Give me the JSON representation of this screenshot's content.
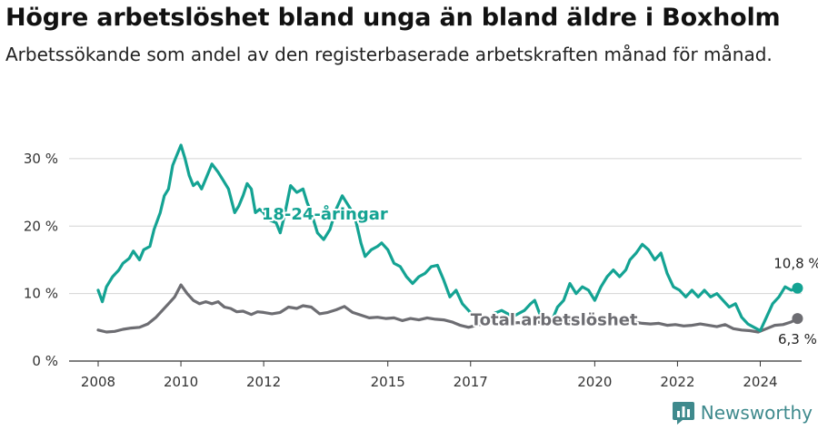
{
  "header": {
    "title": "Högre arbetslöshet bland unga än bland äldre i Boxholm",
    "subtitle": "Arbetssökande som andel av den registerbaserade arbetskraften månad för månad."
  },
  "brand": {
    "name": "Newsworthy",
    "icon": "newsworthy-logo-icon",
    "color": "#3f8a8d"
  },
  "chart_data": {
    "type": "line",
    "y_ticks": [
      0,
      10,
      20,
      30
    ],
    "y_tick_labels": [
      "0 %",
      "10 %",
      "20 %",
      "30 %"
    ],
    "x_ticks": [
      2008,
      2010,
      2012,
      2015,
      2017,
      2020,
      2022,
      2024
    ],
    "x_tick_labels": [
      "2008",
      "2010",
      "2012",
      "2015",
      "2017",
      "2020",
      "2022",
      "2024"
    ],
    "ylim": [
      0,
      32
    ],
    "xlim": [
      2008.0,
      2025.0
    ],
    "grid": true,
    "series": [
      {
        "name": "18-24-åringar",
        "color": "#14a393",
        "end_label": "10,8 %",
        "points": [
          [
            2008.0,
            10.5
          ],
          [
            2008.1,
            8.8
          ],
          [
            2008.2,
            11.0
          ],
          [
            2008.35,
            12.5
          ],
          [
            2008.5,
            13.5
          ],
          [
            2008.6,
            14.5
          ],
          [
            2008.75,
            15.2
          ],
          [
            2008.85,
            16.3
          ],
          [
            2009.0,
            15.0
          ],
          [
            2009.1,
            16.5
          ],
          [
            2009.25,
            17.0
          ],
          [
            2009.35,
            19.5
          ],
          [
            2009.5,
            22.0
          ],
          [
            2009.6,
            24.5
          ],
          [
            2009.7,
            25.5
          ],
          [
            2009.8,
            29.0
          ],
          [
            2009.9,
            30.5
          ],
          [
            2010.0,
            32.0
          ],
          [
            2010.1,
            30.0
          ],
          [
            2010.2,
            27.5
          ],
          [
            2010.3,
            26.0
          ],
          [
            2010.4,
            26.5
          ],
          [
            2010.5,
            25.5
          ],
          [
            2010.6,
            27.0
          ],
          [
            2010.75,
            29.2
          ],
          [
            2010.9,
            28.0
          ],
          [
            2011.0,
            27.0
          ],
          [
            2011.15,
            25.5
          ],
          [
            2011.3,
            22.0
          ],
          [
            2011.4,
            23.0
          ],
          [
            2011.5,
            24.5
          ],
          [
            2011.6,
            26.3
          ],
          [
            2011.7,
            25.5
          ],
          [
            2011.8,
            22.0
          ],
          [
            2011.9,
            22.5
          ],
          [
            2012.0,
            22.0
          ],
          [
            2012.1,
            21.0
          ],
          [
            2012.3,
            20.5
          ],
          [
            2012.4,
            19.0
          ],
          [
            2012.5,
            21.5
          ],
          [
            2012.65,
            26.0
          ],
          [
            2012.8,
            25.0
          ],
          [
            2012.95,
            25.5
          ],
          [
            2013.05,
            23.5
          ],
          [
            2013.15,
            22.0
          ],
          [
            2013.3,
            19.0
          ],
          [
            2013.45,
            18.0
          ],
          [
            2013.6,
            19.5
          ],
          [
            2013.75,
            22.5
          ],
          [
            2013.9,
            24.5
          ],
          [
            2014.05,
            23.0
          ],
          [
            2014.2,
            21.5
          ],
          [
            2014.35,
            17.5
          ],
          [
            2014.45,
            15.5
          ],
          [
            2014.6,
            16.5
          ],
          [
            2014.75,
            17.0
          ],
          [
            2014.85,
            17.5
          ],
          [
            2015.0,
            16.5
          ],
          [
            2015.15,
            14.5
          ],
          [
            2015.3,
            14.0
          ],
          [
            2015.45,
            12.5
          ],
          [
            2015.6,
            11.5
          ],
          [
            2015.75,
            12.5
          ],
          [
            2015.9,
            13.0
          ],
          [
            2016.05,
            14.0
          ],
          [
            2016.2,
            14.2
          ],
          [
            2016.35,
            12.0
          ],
          [
            2016.5,
            9.5
          ],
          [
            2016.65,
            10.5
          ],
          [
            2016.8,
            8.5
          ],
          [
            2016.95,
            7.5
          ],
          [
            2017.1,
            6.5
          ],
          [
            2017.25,
            5.5
          ],
          [
            2017.4,
            6.0
          ],
          [
            2017.55,
            7.0
          ],
          [
            2017.75,
            7.5
          ],
          [
            2017.9,
            7.0
          ],
          [
            2018.0,
            6.5
          ],
          [
            2018.15,
            7.0
          ],
          [
            2018.3,
            7.5
          ],
          [
            2018.45,
            8.5
          ],
          [
            2018.55,
            9.0
          ],
          [
            2018.7,
            6.5
          ],
          [
            2018.85,
            6.0
          ],
          [
            2019.0,
            6.5
          ],
          [
            2019.1,
            8.0
          ],
          [
            2019.25,
            9.0
          ],
          [
            2019.4,
            11.5
          ],
          [
            2019.55,
            10.0
          ],
          [
            2019.7,
            11.0
          ],
          [
            2019.85,
            10.5
          ],
          [
            2020.0,
            9.0
          ],
          [
            2020.15,
            11.0
          ],
          [
            2020.3,
            12.5
          ],
          [
            2020.45,
            13.5
          ],
          [
            2020.6,
            12.5
          ],
          [
            2020.75,
            13.5
          ],
          [
            2020.85,
            15.0
          ],
          [
            2021.0,
            16.0
          ],
          [
            2021.15,
            17.3
          ],
          [
            2021.3,
            16.5
          ],
          [
            2021.45,
            15.0
          ],
          [
            2021.6,
            16.0
          ],
          [
            2021.75,
            13.0
          ],
          [
            2021.9,
            11.0
          ],
          [
            2022.05,
            10.5
          ],
          [
            2022.2,
            9.5
          ],
          [
            2022.35,
            10.5
          ],
          [
            2022.5,
            9.5
          ],
          [
            2022.65,
            10.5
          ],
          [
            2022.8,
            9.5
          ],
          [
            2022.95,
            10.0
          ],
          [
            2023.1,
            9.0
          ],
          [
            2023.25,
            8.0
          ],
          [
            2023.4,
            8.5
          ],
          [
            2023.55,
            6.5
          ],
          [
            2023.7,
            5.5
          ],
          [
            2023.85,
            5.0
          ],
          [
            2024.0,
            4.5
          ],
          [
            2024.15,
            6.5
          ],
          [
            2024.3,
            8.5
          ],
          [
            2024.45,
            9.5
          ],
          [
            2024.6,
            11.0
          ],
          [
            2024.75,
            10.5
          ],
          [
            2024.9,
            10.8
          ]
        ]
      },
      {
        "name": "Total arbetslöshet",
        "color": "#6d6d72",
        "end_label": "6,3 %",
        "points": [
          [
            2008.0,
            4.6
          ],
          [
            2008.2,
            4.3
          ],
          [
            2008.4,
            4.4
          ],
          [
            2008.6,
            4.7
          ],
          [
            2008.8,
            4.9
          ],
          [
            2009.0,
            5.0
          ],
          [
            2009.2,
            5.5
          ],
          [
            2009.4,
            6.5
          ],
          [
            2009.55,
            7.5
          ],
          [
            2009.7,
            8.5
          ],
          [
            2009.85,
            9.5
          ],
          [
            2010.0,
            11.3
          ],
          [
            2010.15,
            10.0
          ],
          [
            2010.3,
            9.0
          ],
          [
            2010.45,
            8.5
          ],
          [
            2010.6,
            8.8
          ],
          [
            2010.75,
            8.5
          ],
          [
            2010.9,
            8.8
          ],
          [
            2011.05,
            8.0
          ],
          [
            2011.2,
            7.8
          ],
          [
            2011.35,
            7.3
          ],
          [
            2011.5,
            7.4
          ],
          [
            2011.7,
            6.9
          ],
          [
            2011.85,
            7.3
          ],
          [
            2012.0,
            7.2
          ],
          [
            2012.2,
            7.0
          ],
          [
            2012.4,
            7.2
          ],
          [
            2012.6,
            8.0
          ],
          [
            2012.8,
            7.8
          ],
          [
            2012.95,
            8.2
          ],
          [
            2013.15,
            8.0
          ],
          [
            2013.35,
            7.0
          ],
          [
            2013.55,
            7.2
          ],
          [
            2013.75,
            7.6
          ],
          [
            2013.95,
            8.1
          ],
          [
            2014.15,
            7.2
          ],
          [
            2014.35,
            6.8
          ],
          [
            2014.55,
            6.4
          ],
          [
            2014.75,
            6.5
          ],
          [
            2014.95,
            6.3
          ],
          [
            2015.15,
            6.4
          ],
          [
            2015.35,
            6.0
          ],
          [
            2015.55,
            6.3
          ],
          [
            2015.75,
            6.1
          ],
          [
            2015.95,
            6.4
          ],
          [
            2016.15,
            6.2
          ],
          [
            2016.35,
            6.1
          ],
          [
            2016.55,
            5.8
          ],
          [
            2016.75,
            5.3
          ],
          [
            2016.95,
            5.0
          ],
          [
            2017.15,
            5.3
          ],
          [
            2017.35,
            5.6
          ],
          [
            2017.55,
            5.6
          ],
          [
            2017.75,
            5.5
          ],
          [
            2017.95,
            5.6
          ],
          [
            2018.15,
            5.7
          ],
          [
            2018.35,
            5.5
          ],
          [
            2018.55,
            5.8
          ],
          [
            2018.75,
            5.7
          ],
          [
            2018.95,
            5.9
          ],
          [
            2019.15,
            5.8
          ],
          [
            2019.35,
            6.0
          ],
          [
            2019.55,
            5.8
          ],
          [
            2019.75,
            6.0
          ],
          [
            2019.95,
            6.1
          ],
          [
            2020.15,
            6.2
          ],
          [
            2020.35,
            6.0
          ],
          [
            2020.55,
            6.2
          ],
          [
            2020.75,
            6.0
          ],
          [
            2020.95,
            5.8
          ],
          [
            2021.15,
            5.6
          ],
          [
            2021.35,
            5.5
          ],
          [
            2021.55,
            5.6
          ],
          [
            2021.75,
            5.3
          ],
          [
            2021.95,
            5.4
          ],
          [
            2022.15,
            5.2
          ],
          [
            2022.35,
            5.3
          ],
          [
            2022.55,
            5.5
          ],
          [
            2022.75,
            5.3
          ],
          [
            2022.95,
            5.1
          ],
          [
            2023.15,
            5.4
          ],
          [
            2023.35,
            4.8
          ],
          [
            2023.55,
            4.6
          ],
          [
            2023.75,
            4.5
          ],
          [
            2023.95,
            4.3
          ],
          [
            2024.15,
            4.8
          ],
          [
            2024.35,
            5.3
          ],
          [
            2024.55,
            5.4
          ],
          [
            2024.75,
            5.8
          ],
          [
            2024.9,
            6.3
          ]
        ]
      }
    ]
  }
}
